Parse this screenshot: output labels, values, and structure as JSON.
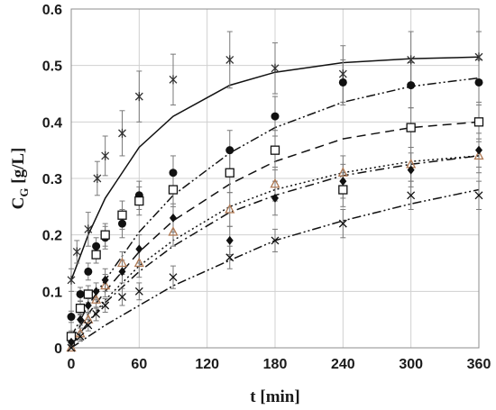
{
  "chart_data": {
    "type": "scatter",
    "xlabel": "t [min]",
    "ylabel_main": "C",
    "ylabel_sub": "G",
    "ylabel_unit": " [g/L]",
    "xlim": [
      0,
      360
    ],
    "ylim": [
      0,
      0.6
    ],
    "x_ticks": [
      0,
      60,
      120,
      180,
      240,
      300,
      360
    ],
    "y_ticks": [
      0,
      0.1,
      0.2,
      0.3,
      0.4,
      0.5,
      0.6
    ],
    "y_tick_labels": [
      "0",
      "0.1",
      "0.2",
      "0.3",
      "0.4",
      "0.5",
      "0.6"
    ],
    "grid": true,
    "series": [
      {
        "marker": "star",
        "line_style": "solid",
        "color": "#333333",
        "points": [
          {
            "x": 0,
            "y": 0.12,
            "err": 0.02
          },
          {
            "x": 5,
            "y": 0.17,
            "err": 0.02
          },
          {
            "x": 15,
            "y": 0.21,
            "err": 0.03
          },
          {
            "x": 23,
            "y": 0.3,
            "err": 0.03
          },
          {
            "x": 30,
            "y": 0.34,
            "err": 0.035
          },
          {
            "x": 45,
            "y": 0.38,
            "err": 0.04
          },
          {
            "x": 60,
            "y": 0.445,
            "err": 0.045
          },
          {
            "x": 90,
            "y": 0.475,
            "err": 0.045
          },
          {
            "x": 140,
            "y": 0.51,
            "err": 0.05
          },
          {
            "x": 180,
            "y": 0.495,
            "err": 0.045
          },
          {
            "x": 240,
            "y": 0.485,
            "err": 0.05
          },
          {
            "x": 300,
            "y": 0.51,
            "err": 0.05
          },
          {
            "x": 360,
            "y": 0.515,
            "err": 0.045
          }
        ],
        "fit": [
          {
            "x": 0,
            "y": 0.12
          },
          {
            "x": 15,
            "y": 0.2
          },
          {
            "x": 30,
            "y": 0.265
          },
          {
            "x": 60,
            "y": 0.355
          },
          {
            "x": 90,
            "y": 0.41
          },
          {
            "x": 140,
            "y": 0.465
          },
          {
            "x": 180,
            "y": 0.488
          },
          {
            "x": 240,
            "y": 0.505
          },
          {
            "x": 300,
            "y": 0.512
          },
          {
            "x": 360,
            "y": 0.515
          }
        ]
      },
      {
        "marker": "circle",
        "line_style": "dashdotdot",
        "color": "#111111",
        "points": [
          {
            "x": 0,
            "y": 0.055,
            "err": 0.01
          },
          {
            "x": 8,
            "y": 0.095,
            "err": 0.012
          },
          {
            "x": 15,
            "y": 0.135,
            "err": 0.015
          },
          {
            "x": 22,
            "y": 0.18,
            "err": 0.015
          },
          {
            "x": 30,
            "y": 0.195,
            "err": 0.02
          },
          {
            "x": 45,
            "y": 0.22,
            "err": 0.025
          },
          {
            "x": 60,
            "y": 0.27,
            "err": 0.025
          },
          {
            "x": 90,
            "y": 0.31,
            "err": 0.03
          },
          {
            "x": 140,
            "y": 0.35,
            "err": 0.035
          },
          {
            "x": 180,
            "y": 0.41,
            "err": 0.035
          },
          {
            "x": 240,
            "y": 0.47,
            "err": 0.04
          },
          {
            "x": 300,
            "y": 0.465,
            "err": 0.04
          },
          {
            "x": 360,
            "y": 0.47,
            "err": 0.04
          }
        ],
        "fit": [
          {
            "x": 0,
            "y": 0.02
          },
          {
            "x": 15,
            "y": 0.075
          },
          {
            "x": 30,
            "y": 0.12
          },
          {
            "x": 60,
            "y": 0.205
          },
          {
            "x": 90,
            "y": 0.27
          },
          {
            "x": 140,
            "y": 0.345
          },
          {
            "x": 180,
            "y": 0.39
          },
          {
            "x": 240,
            "y": 0.435
          },
          {
            "x": 300,
            "y": 0.463
          },
          {
            "x": 360,
            "y": 0.478
          }
        ]
      },
      {
        "marker": "square",
        "line_style": "dashed",
        "color": "#111111",
        "points": [
          {
            "x": 0,
            "y": 0.02,
            "err": 0.01
          },
          {
            "x": 8,
            "y": 0.07,
            "err": 0.012
          },
          {
            "x": 15,
            "y": 0.095,
            "err": 0.015
          },
          {
            "x": 22,
            "y": 0.165,
            "err": 0.015
          },
          {
            "x": 30,
            "y": 0.2,
            "err": 0.02
          },
          {
            "x": 45,
            "y": 0.235,
            "err": 0.025
          },
          {
            "x": 60,
            "y": 0.26,
            "err": 0.025
          },
          {
            "x": 90,
            "y": 0.28,
            "err": 0.03
          },
          {
            "x": 140,
            "y": 0.31,
            "err": 0.035
          },
          {
            "x": 180,
            "y": 0.35,
            "err": 0.035
          },
          {
            "x": 240,
            "y": 0.28,
            "err": 0.03
          },
          {
            "x": 300,
            "y": 0.39,
            "err": 0.035
          },
          {
            "x": 360,
            "y": 0.4,
            "err": 0.035
          }
        ],
        "fit": [
          {
            "x": 0,
            "y": 0.015
          },
          {
            "x": 15,
            "y": 0.06
          },
          {
            "x": 30,
            "y": 0.1
          },
          {
            "x": 60,
            "y": 0.17
          },
          {
            "x": 90,
            "y": 0.225
          },
          {
            "x": 140,
            "y": 0.29
          },
          {
            "x": 180,
            "y": 0.33
          },
          {
            "x": 240,
            "y": 0.37
          },
          {
            "x": 300,
            "y": 0.39
          },
          {
            "x": 360,
            "y": 0.4
          }
        ]
      },
      {
        "marker": "triangle",
        "line_style": "dotted",
        "color": "#b07a55",
        "points": [
          {
            "x": 0,
            "y": 0.0,
            "err": 0.01
          },
          {
            "x": 8,
            "y": 0.025,
            "err": 0.01
          },
          {
            "x": 15,
            "y": 0.05,
            "err": 0.012
          },
          {
            "x": 22,
            "y": 0.085,
            "err": 0.015
          },
          {
            "x": 30,
            "y": 0.11,
            "err": 0.02
          },
          {
            "x": 45,
            "y": 0.15,
            "err": 0.02
          },
          {
            "x": 60,
            "y": 0.15,
            "err": 0.025
          },
          {
            "x": 90,
            "y": 0.205,
            "err": 0.025
          },
          {
            "x": 140,
            "y": 0.245,
            "err": 0.03
          },
          {
            "x": 180,
            "y": 0.29,
            "err": 0.03
          },
          {
            "x": 240,
            "y": 0.31,
            "err": 0.03
          },
          {
            "x": 300,
            "y": 0.325,
            "err": 0.03
          },
          {
            "x": 360,
            "y": 0.34,
            "err": 0.03
          }
        ],
        "fit": [
          {
            "x": 0,
            "y": 0.0
          },
          {
            "x": 15,
            "y": 0.045
          },
          {
            "x": 30,
            "y": 0.085
          },
          {
            "x": 60,
            "y": 0.145
          },
          {
            "x": 90,
            "y": 0.19
          },
          {
            "x": 140,
            "y": 0.25
          },
          {
            "x": 180,
            "y": 0.28
          },
          {
            "x": 240,
            "y": 0.31
          },
          {
            "x": 300,
            "y": 0.33
          },
          {
            "x": 360,
            "y": 0.34
          }
        ]
      },
      {
        "marker": "diamond",
        "line_style": "dashdot",
        "color": "#111111",
        "points": [
          {
            "x": 0,
            "y": 0.01,
            "err": 0.01
          },
          {
            "x": 8,
            "y": 0.05,
            "err": 0.01
          },
          {
            "x": 15,
            "y": 0.075,
            "err": 0.012
          },
          {
            "x": 22,
            "y": 0.1,
            "err": 0.015
          },
          {
            "x": 30,
            "y": 0.12,
            "err": 0.02
          },
          {
            "x": 45,
            "y": 0.135,
            "err": 0.02
          },
          {
            "x": 60,
            "y": 0.175,
            "err": 0.025
          },
          {
            "x": 90,
            "y": 0.23,
            "err": 0.025
          },
          {
            "x": 140,
            "y": 0.19,
            "err": 0.025
          },
          {
            "x": 180,
            "y": 0.265,
            "err": 0.03
          },
          {
            "x": 240,
            "y": 0.295,
            "err": 0.03
          },
          {
            "x": 300,
            "y": 0.315,
            "err": 0.03
          },
          {
            "x": 360,
            "y": 0.35,
            "err": 0.03
          }
        ],
        "fit": [
          {
            "x": 0,
            "y": 0.005
          },
          {
            "x": 15,
            "y": 0.045
          },
          {
            "x": 30,
            "y": 0.08
          },
          {
            "x": 60,
            "y": 0.135
          },
          {
            "x": 90,
            "y": 0.18
          },
          {
            "x": 140,
            "y": 0.24
          },
          {
            "x": 180,
            "y": 0.27
          },
          {
            "x": 240,
            "y": 0.305
          },
          {
            "x": 300,
            "y": 0.325
          },
          {
            "x": 360,
            "y": 0.34
          }
        ]
      },
      {
        "marker": "x",
        "line_style": "dashdotdot",
        "color": "#111111",
        "points": [
          {
            "x": 0,
            "y": 0.0,
            "err": 0.008
          },
          {
            "x": 8,
            "y": 0.02,
            "err": 0.008
          },
          {
            "x": 15,
            "y": 0.04,
            "err": 0.01
          },
          {
            "x": 22,
            "y": 0.06,
            "err": 0.012
          },
          {
            "x": 30,
            "y": 0.075,
            "err": 0.012
          },
          {
            "x": 45,
            "y": 0.09,
            "err": 0.015
          },
          {
            "x": 60,
            "y": 0.1,
            "err": 0.015
          },
          {
            "x": 90,
            "y": 0.125,
            "err": 0.02
          },
          {
            "x": 140,
            "y": 0.16,
            "err": 0.02
          },
          {
            "x": 180,
            "y": 0.19,
            "err": 0.02
          },
          {
            "x": 240,
            "y": 0.22,
            "err": 0.025
          },
          {
            "x": 300,
            "y": 0.27,
            "err": 0.025
          },
          {
            "x": 360,
            "y": 0.27,
            "err": 0.025
          }
        ],
        "fit": [
          {
            "x": 0,
            "y": 0.0
          },
          {
            "x": 15,
            "y": 0.02
          },
          {
            "x": 30,
            "y": 0.04
          },
          {
            "x": 60,
            "y": 0.075
          },
          {
            "x": 90,
            "y": 0.11
          },
          {
            "x": 140,
            "y": 0.155
          },
          {
            "x": 180,
            "y": 0.19
          },
          {
            "x": 240,
            "y": 0.225
          },
          {
            "x": 300,
            "y": 0.255
          },
          {
            "x": 360,
            "y": 0.28
          }
        ]
      }
    ]
  }
}
